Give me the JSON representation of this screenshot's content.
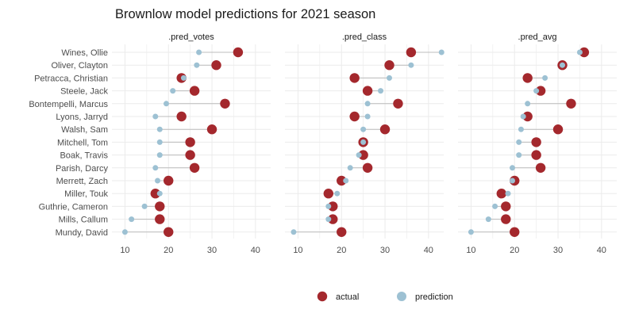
{
  "chart_data": {
    "type": "scatter",
    "title": "Brownlow model predictions for 2021 season",
    "xlabel": "",
    "ylabel": "",
    "players": [
      "Wines, Ollie",
      "Oliver, Clayton",
      "Petracca, Christian",
      "Steele, Jack",
      "Bontempelli, Marcus",
      "Lyons, Jarryd",
      "Walsh, Sam",
      "Mitchell, Tom",
      "Boak, Travis",
      "Parish, Darcy",
      "Merrett, Zach",
      "Miller, Touk",
      "Guthrie, Cameron",
      "Mills, Callum",
      "Mundy, David"
    ],
    "actual": [
      36,
      31,
      23,
      26,
      33,
      23,
      30,
      25,
      25,
      26,
      20,
      17,
      18,
      18,
      20
    ],
    "panels": [
      {
        "name": ".pred_votes",
        "prediction": [
          27,
          26.5,
          23.5,
          21,
          19.5,
          17,
          18,
          18,
          18,
          17,
          17.5,
          18,
          14.5,
          11.5,
          10
        ]
      },
      {
        "name": ".pred_class",
        "prediction": [
          43,
          36,
          31,
          29,
          26,
          26,
          25,
          25,
          24,
          22,
          21,
          19,
          17,
          17,
          9
        ]
      },
      {
        "name": ".pred_avg",
        "prediction": [
          35,
          31,
          27,
          25,
          23,
          22,
          21.5,
          21,
          21,
          19.5,
          19.5,
          18.5,
          15.5,
          14,
          10
        ]
      }
    ],
    "xlim": [
      7,
      43.5
    ],
    "xticks": [
      "10",
      "20",
      "30",
      "40"
    ],
    "grid": true,
    "legend": {
      "position": "bottom",
      "items": [
        {
          "label": "actual",
          "color": "#a4282d"
        },
        {
          "label": "prediction",
          "color": "#9dc1d3"
        }
      ]
    },
    "colors": {
      "actual": "#a4282d",
      "prediction": "#9dc1d3",
      "segment": "#bcbcbc",
      "grid": "#ebebeb"
    }
  }
}
